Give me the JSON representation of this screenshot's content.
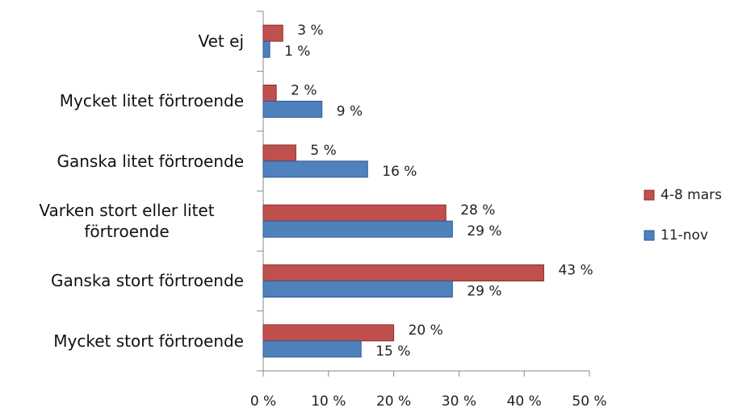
{
  "chart_data": {
    "type": "bar",
    "orientation": "horizontal",
    "categories": [
      "Vet ej",
      "Mycket litet förtroende",
      "Ganska litet förtroende",
      "Varken stort eller litet förtroende",
      "Ganska stort förtroende",
      "Mycket stort förtroende"
    ],
    "series": [
      {
        "name": "4-8 mars",
        "color": "#c0504d",
        "values": [
          3,
          2,
          5,
          28,
          43,
          20
        ],
        "value_labels": [
          "3 %",
          "2 %",
          "5 %",
          "28 %",
          "43 %",
          "20 %"
        ]
      },
      {
        "name": "11-nov",
        "color": "#4f81bd",
        "values": [
          1,
          9,
          16,
          29,
          29,
          15
        ],
        "value_labels": [
          "1 %",
          "9 %",
          "16 %",
          "29 %",
          "29 %",
          "15 %"
        ]
      }
    ],
    "xlim": [
      0,
      50
    ],
    "xticks": [
      {
        "value": 0,
        "label": "0 %"
      },
      {
        "value": 10,
        "label": "10 %"
      },
      {
        "value": 20,
        "label": "20 %"
      },
      {
        "value": 30,
        "label": "30 %"
      },
      {
        "value": 40,
        "label": "40 %"
      },
      {
        "value": 50,
        "label": "50 %"
      }
    ],
    "legend": "right"
  }
}
